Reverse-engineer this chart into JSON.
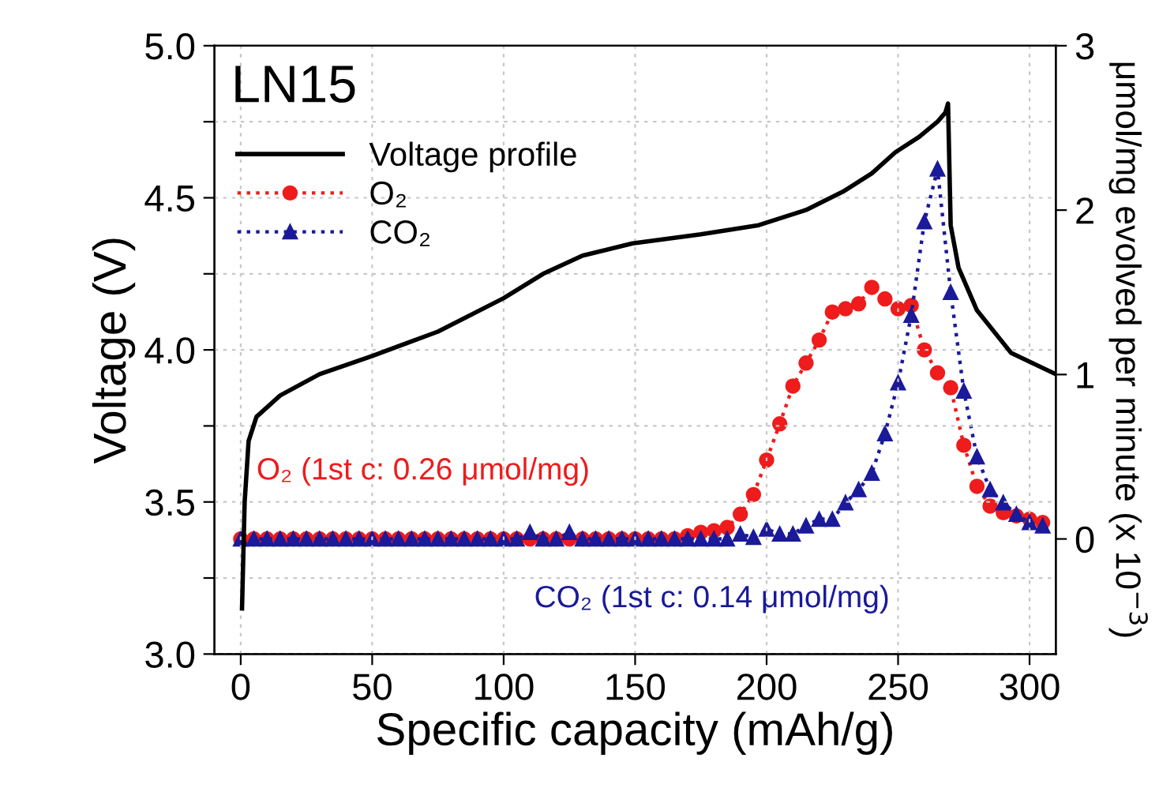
{
  "chart_data": {
    "type": "line",
    "xlabel": "Specific capacity (mAh/g)",
    "ylabel": "Voltage (V)",
    "y2label": "μmol/mg evolved per minute (x 10$^{−3}$)",
    "annotations": [
      "LN15",
      "O₂ (1st c: 0.26 μmol/mg)",
      "CO₂ (1st c: 0.14 μmol/mg)"
    ],
    "xlim": [
      -10,
      310
    ],
    "xticks": [
      0,
      50,
      100,
      150,
      200,
      250,
      300
    ],
    "ylim": [
      3.0,
      5.0
    ],
    "yticks": [
      {
        "value": 3.0,
        "label": "3.0"
      },
      {
        "value": 3.25,
        "label": null
      },
      {
        "value": 3.5,
        "label": "3.5"
      },
      {
        "value": 3.75,
        "label": null
      },
      {
        "value": 4.0,
        "label": "4.0"
      },
      {
        "value": 4.25,
        "label": null
      },
      {
        "value": 4.5,
        "label": "4.5"
      },
      {
        "value": 4.75,
        "label": null
      },
      {
        "value": 5.0,
        "label": "5.0"
      }
    ],
    "y2lim": [
      -0.7,
      3
    ],
    "y2ticks": [
      0,
      1,
      2,
      3
    ],
    "grid": true,
    "legend": "top left",
    "series": [
      {
        "name": "Voltage profile",
        "color": "#000000",
        "line_style": "solid",
        "marker": "none",
        "x": [
          0.5,
          1.5,
          3,
          6,
          15,
          30,
          50,
          75,
          100,
          115,
          130,
          149,
          175,
          197,
          215,
          229,
          240,
          249,
          258,
          265,
          268,
          269,
          270,
          273,
          280,
          293,
          310
        ],
        "values": [
          3.15,
          3.5,
          3.7,
          3.78,
          3.85,
          3.92,
          3.98,
          4.06,
          4.17,
          4.25,
          4.31,
          4.35,
          4.38,
          4.41,
          4.46,
          4.52,
          4.58,
          4.65,
          4.7,
          4.75,
          4.78,
          4.81,
          4.41,
          4.27,
          4.13,
          3.99,
          3.92
        ]
      },
      {
        "name": "O₂",
        "color": "#ee1c1c",
        "axis": "y2",
        "line_style": "dotted",
        "marker": "circle",
        "x": [
          0,
          5,
          10,
          15,
          20,
          25,
          30,
          35,
          40,
          45,
          50,
          55,
          60,
          65,
          70,
          75,
          80,
          85,
          90,
          95,
          100,
          105,
          110,
          115,
          120,
          125,
          130,
          135,
          140,
          145,
          150,
          155,
          160,
          165,
          170,
          175,
          180,
          185,
          190,
          195,
          200,
          205,
          210,
          215,
          220,
          225,
          230,
          235,
          240,
          245,
          250,
          255,
          260,
          265,
          270,
          275,
          280,
          285,
          290,
          295,
          300,
          305
        ],
        "values": [
          0,
          0,
          0,
          0,
          0,
          0,
          0,
          0,
          0,
          0,
          0,
          0,
          0,
          0,
          0,
          0,
          0,
          0,
          0,
          0,
          0,
          0,
          0,
          0,
          0,
          0,
          0,
          0,
          0,
          0,
          0,
          0,
          0,
          0,
          0.02,
          0.04,
          0.05,
          0.07,
          0.15,
          0.27,
          0.48,
          0.7,
          0.93,
          1.07,
          1.21,
          1.38,
          1.4,
          1.43,
          1.53,
          1.46,
          1.4,
          1.42,
          1.15,
          1.01,
          0.92,
          0.57,
          0.32,
          0.2,
          0.16,
          0.14,
          0.12,
          0.1
        ]
      },
      {
        "name": "CO₂",
        "color": "#1a1a9a",
        "axis": "y2",
        "line_style": "dotted",
        "marker": "triangle",
        "x": [
          0,
          5,
          10,
          15,
          20,
          25,
          30,
          35,
          40,
          45,
          50,
          55,
          60,
          65,
          70,
          75,
          80,
          85,
          90,
          95,
          100,
          105,
          110,
          115,
          120,
          125,
          130,
          135,
          140,
          145,
          150,
          155,
          160,
          165,
          170,
          175,
          180,
          185,
          190,
          195,
          200,
          205,
          210,
          215,
          220,
          225,
          230,
          235,
          240,
          245,
          250,
          255,
          260,
          265,
          270,
          275,
          280,
          285,
          290,
          295,
          300,
          305
        ],
        "values": [
          0,
          0,
          0,
          0,
          0,
          0,
          0,
          0,
          0,
          0,
          0,
          0,
          0,
          0,
          0,
          0,
          0,
          0,
          0,
          0,
          0,
          0,
          0.04,
          0,
          0,
          0.04,
          0,
          0,
          0,
          0,
          0,
          0,
          0,
          0,
          0,
          0,
          0,
          0,
          0.03,
          0.01,
          0.06,
          0.03,
          0.03,
          0.08,
          0.12,
          0.12,
          0.22,
          0.3,
          0.4,
          0.64,
          0.95,
          1.36,
          1.93,
          2.25,
          1.5,
          0.9,
          0.5,
          0.3,
          0.22,
          0.15,
          0.1,
          0.08
        ]
      }
    ]
  }
}
